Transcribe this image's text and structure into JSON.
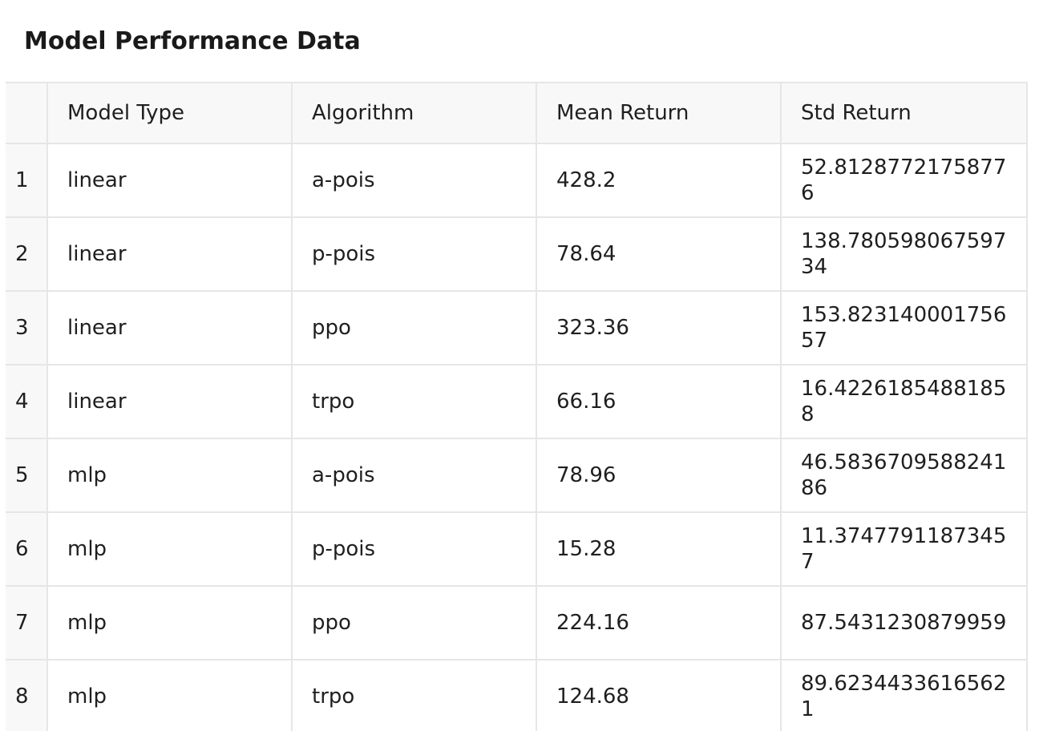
{
  "title": "Model Performance Data",
  "chart_data": {
    "type": "table",
    "columns": [
      "",
      "Model Type",
      "Algorithm",
      "Mean Return",
      "Std Return"
    ],
    "rows": [
      [
        "1",
        "linear",
        "a-pois",
        "428.2",
        "52.81287721758776"
      ],
      [
        "2",
        "linear",
        "p-pois",
        "78.64",
        "138.78059806759734"
      ],
      [
        "3",
        "linear",
        "ppo",
        "323.36",
        "153.82314000175657"
      ],
      [
        "4",
        "linear",
        "trpo",
        "66.16",
        "16.42261854881858"
      ],
      [
        "5",
        "mlp",
        "a-pois",
        "78.96",
        "46.583670958824186"
      ],
      [
        "6",
        "mlp",
        "p-pois",
        "15.28",
        "11.37477911873457"
      ],
      [
        "7",
        "mlp",
        "ppo",
        "224.16",
        "87.5431230879959"
      ],
      [
        "8",
        "mlp",
        "trpo",
        "124.68",
        "89.62344336165621"
      ]
    ]
  }
}
